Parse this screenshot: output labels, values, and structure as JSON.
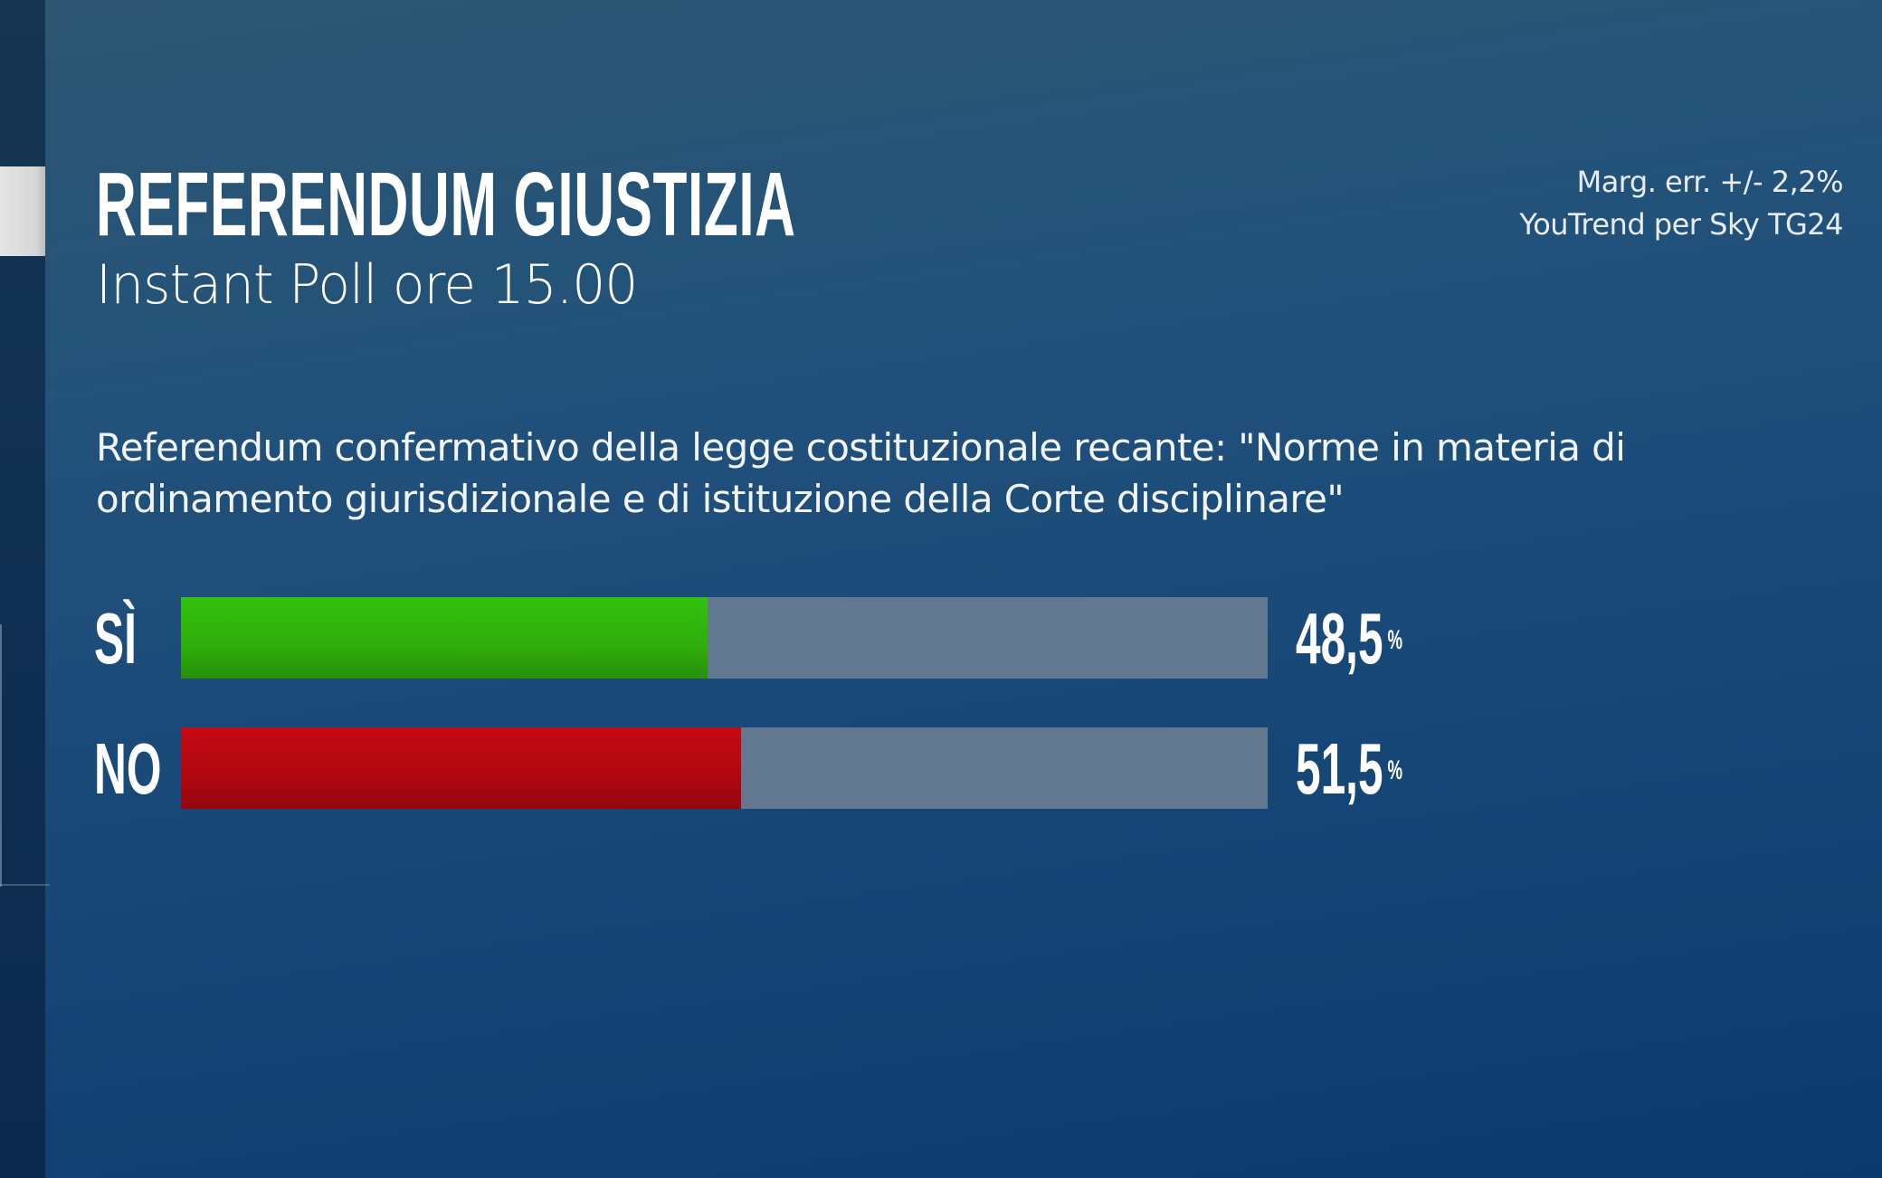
{
  "header": {
    "title": "REFERENDUM GIUSTIZIA",
    "subtitle": "Instant Poll ore 15.00"
  },
  "source": {
    "margin_of_error": "Marg. err. +/-  2,2%",
    "pollster": "YouTrend per Sky TG24"
  },
  "question": {
    "line1": "Referendum confermativo della legge costituzionale recante: \"Norme in materia di",
    "line2": "ordinamento giurisdizionale e di istituzione della Corte disciplinare\""
  },
  "results": [
    {
      "label": "SÌ",
      "value": "48,5",
      "unit": "%",
      "percent": 48.5,
      "color": "#2fae0c"
    },
    {
      "label": "NO",
      "value": "51,5",
      "unit": "%",
      "percent": 51.5,
      "color": "#b0070f"
    }
  ],
  "colors": {
    "track": "#62788f",
    "background_top": "#2e5672",
    "background_bottom": "#0b3b6d"
  },
  "chart_data": {
    "type": "bar",
    "orientation": "horizontal",
    "title": "REFERENDUM GIUSTIZIA",
    "subtitle": "Instant Poll ore 15.00",
    "categories": [
      "SÌ",
      "NO"
    ],
    "values": [
      48.5,
      51.5
    ],
    "unit": "%",
    "xlim": [
      0,
      100
    ],
    "annotations": [
      "Marg. err. +/-  2,2%",
      "YouTrend per Sky TG24"
    ],
    "grid": false,
    "legend": null
  }
}
